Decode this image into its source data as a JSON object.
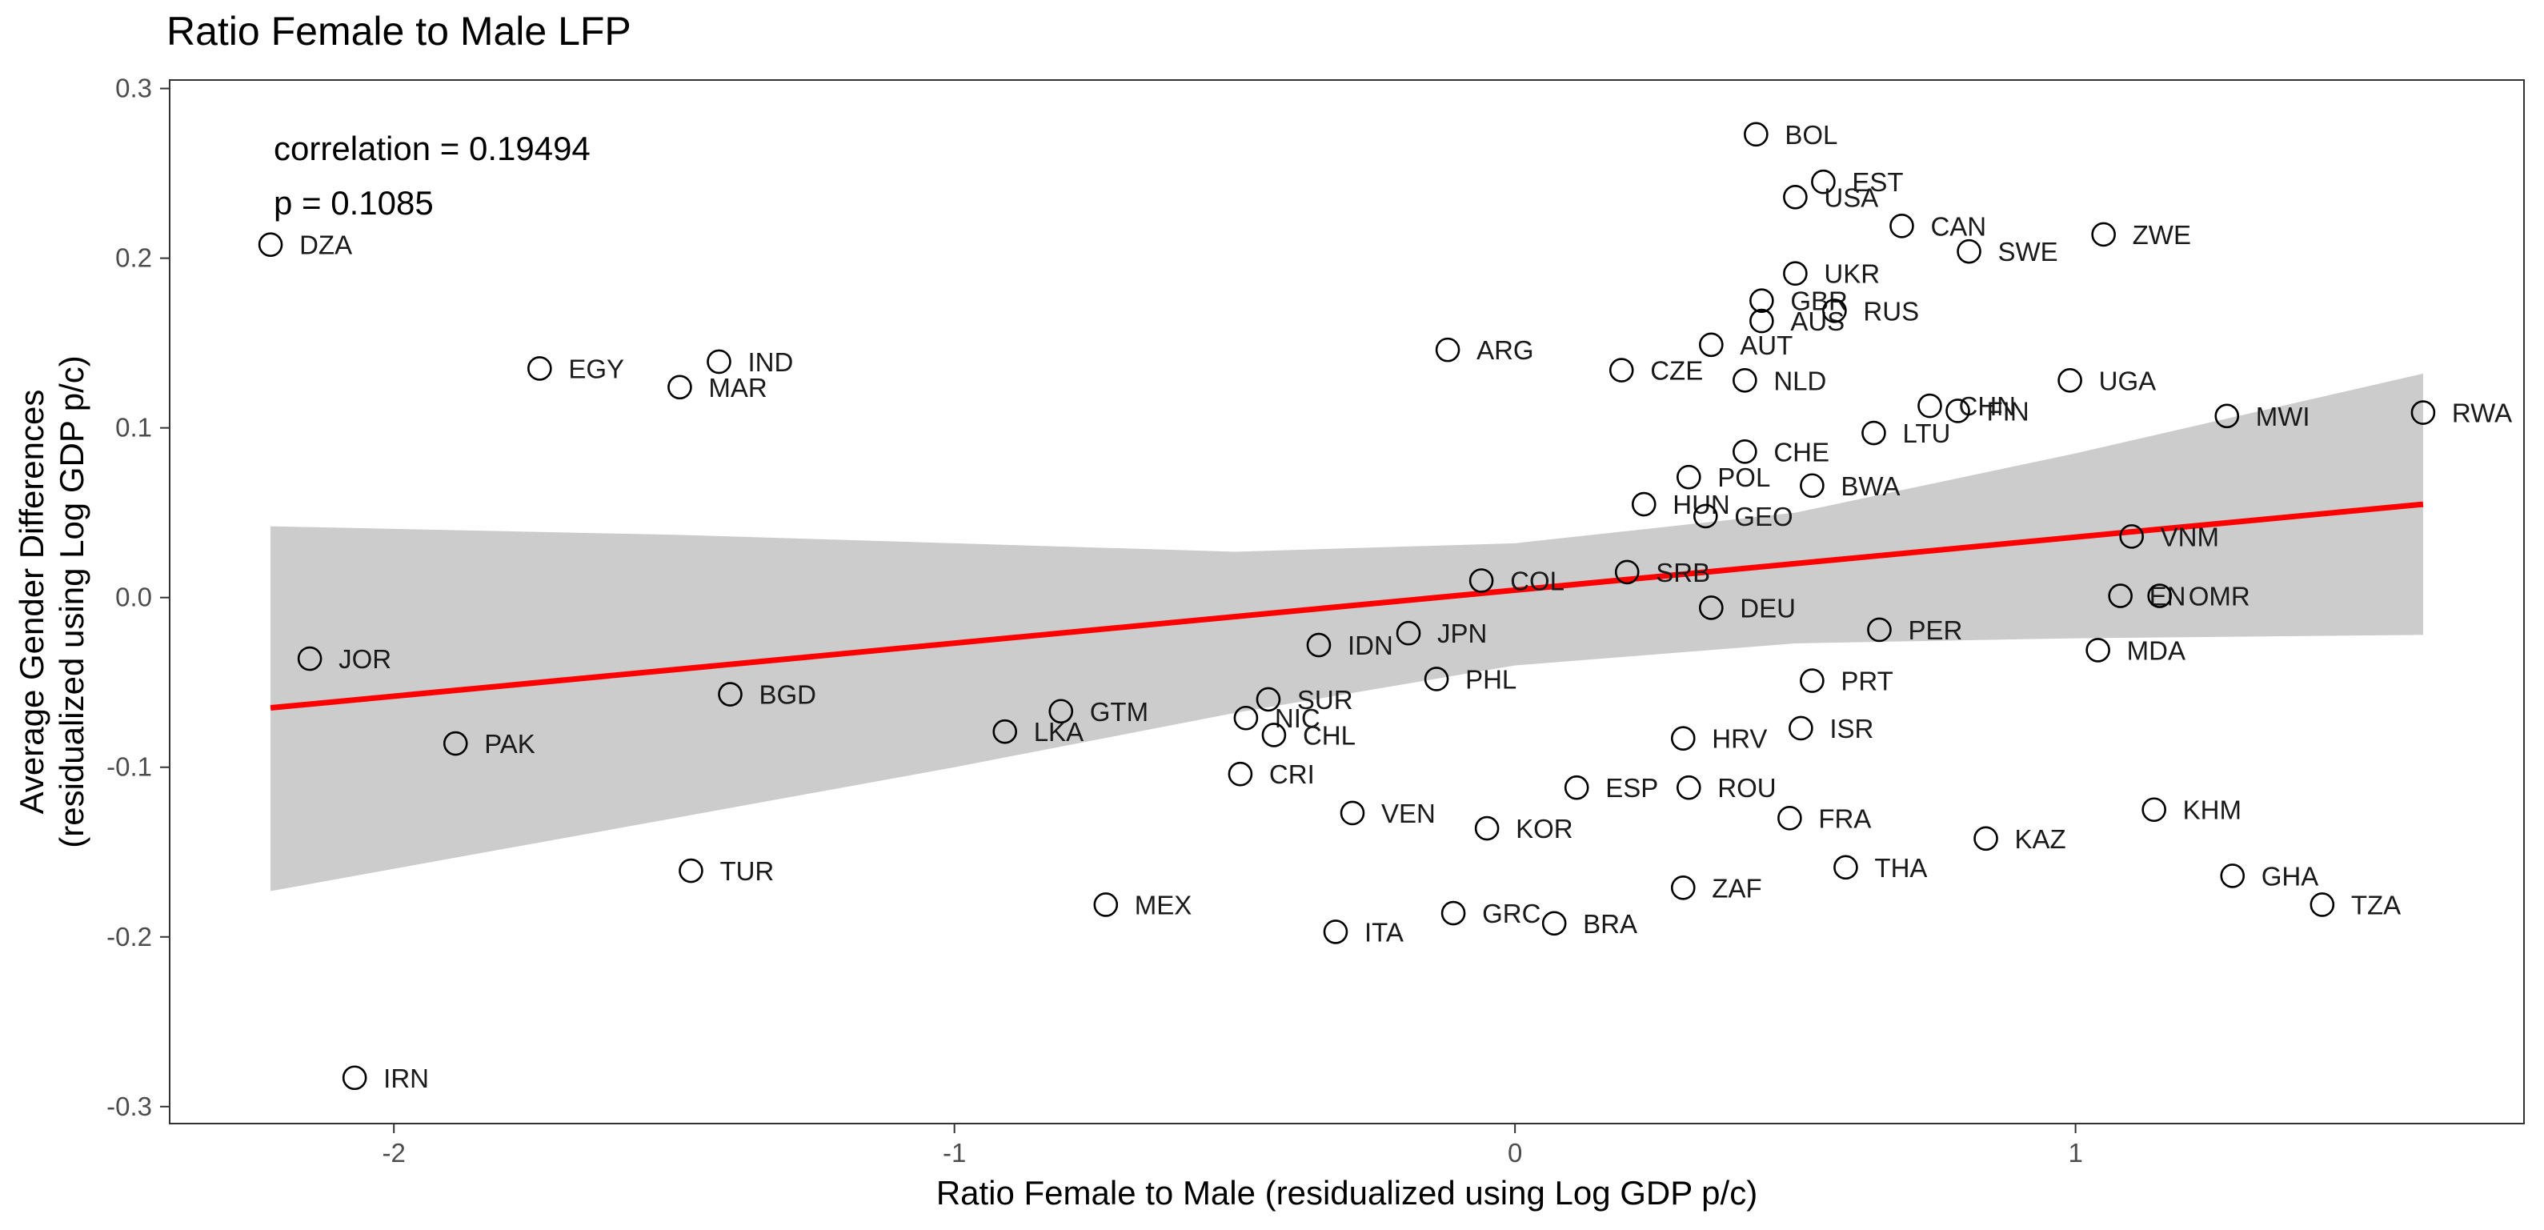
{
  "chart_data": {
    "type": "scatter",
    "title": "Ratio Female to Male LFP",
    "xlabel": "Ratio Female to Male (residualized using Log GDP p/c)",
    "ylabel_lines": [
      "Average Gender Differences",
      "(residualized using Log GDP p/c)"
    ],
    "xlim": [
      -2.4,
      1.8
    ],
    "ylim": [
      -0.31,
      0.305
    ],
    "x_ticks": [
      -2,
      -1,
      0,
      1
    ],
    "x_tick_labels": [
      "-2",
      "-1",
      "0",
      "1"
    ],
    "y_ticks": [
      0.3,
      0.2,
      0.1,
      0.0,
      -0.1,
      -0.2,
      -0.3
    ],
    "y_tick_labels": [
      "0.3",
      "0.2",
      "0.1",
      "0.0",
      "-0.1",
      "-0.2",
      "-0.3"
    ],
    "grid": false,
    "annotations": [
      "correlation = 0.19494",
      "p = 0.1085"
    ],
    "fit_line": {
      "x": [
        -2.22,
        1.62
      ],
      "y": [
        -0.065,
        0.055
      ],
      "color": "#ff0000"
    },
    "confidence_band": {
      "x": [
        -2.22,
        -1.5,
        -1.0,
        -0.5,
        0.0,
        0.5,
        1.0,
        1.62
      ],
      "lower": [
        -0.173,
        -0.13,
        -0.1,
        -0.068,
        -0.04,
        -0.027,
        -0.024,
        -0.022
      ],
      "upper": [
        0.042,
        0.037,
        0.032,
        0.027,
        0.032,
        0.05,
        0.085,
        0.132
      ],
      "color": "#cccccc"
    },
    "points": [
      {
        "label": "BOL",
        "x": 0.43,
        "y": 0.273
      },
      {
        "label": "EST",
        "x": 0.55,
        "y": 0.245
      },
      {
        "label": "USA",
        "x": 0.5,
        "y": 0.236
      },
      {
        "label": "CAN",
        "x": 0.69,
        "y": 0.219
      },
      {
        "label": "ZWE",
        "x": 1.05,
        "y": 0.214
      },
      {
        "label": "SWE",
        "x": 0.81,
        "y": 0.204
      },
      {
        "label": "DZA",
        "x": -2.22,
        "y": 0.208
      },
      {
        "label": "UKR",
        "x": 0.5,
        "y": 0.191
      },
      {
        "label": "GBR",
        "x": 0.44,
        "y": 0.175
      },
      {
        "label": "AUS",
        "x": 0.44,
        "y": 0.163
      },
      {
        "label": "RUS",
        "x": 0.57,
        "y": 0.169
      },
      {
        "label": "AUT",
        "x": 0.35,
        "y": 0.149
      },
      {
        "label": "ARG",
        "x": -0.12,
        "y": 0.146
      },
      {
        "label": "EGY",
        "x": -1.74,
        "y": 0.135
      },
      {
        "label": "IND",
        "x": -1.42,
        "y": 0.139
      },
      {
        "label": "MAR",
        "x": -1.49,
        "y": 0.124
      },
      {
        "label": "CZE",
        "x": 0.19,
        "y": 0.134
      },
      {
        "label": "NLD",
        "x": 0.41,
        "y": 0.128
      },
      {
        "label": "UGA",
        "x": 0.99,
        "y": 0.128
      },
      {
        "label": "CHN",
        "x": 0.74,
        "y": 0.113
      },
      {
        "label": "FIN",
        "x": 0.79,
        "y": 0.11
      },
      {
        "label": "MWI",
        "x": 1.27,
        "y": 0.107
      },
      {
        "label": "RWA",
        "x": 1.62,
        "y": 0.109
      },
      {
        "label": "LTU",
        "x": 0.64,
        "y": 0.097
      },
      {
        "label": "CHE",
        "x": 0.41,
        "y": 0.086
      },
      {
        "label": "POL",
        "x": 0.31,
        "y": 0.071
      },
      {
        "label": "BWA",
        "x": 0.53,
        "y": 0.066
      },
      {
        "label": "HUN",
        "x": 0.23,
        "y": 0.055
      },
      {
        "label": "GEO",
        "x": 0.34,
        "y": 0.048
      },
      {
        "label": "VNM",
        "x": 1.1,
        "y": 0.036
      },
      {
        "label": "SRB",
        "x": 0.2,
        "y": 0.015
      },
      {
        "label": "COL",
        "x": -0.06,
        "y": 0.01
      },
      {
        "label": "EN",
        "x": 1.08,
        "y": 0.001
      },
      {
        "label": "OMR",
        "x": 1.15,
        "y": 0.001
      },
      {
        "label": "DEU",
        "x": 0.35,
        "y": -0.006
      },
      {
        "label": "PER",
        "x": 0.65,
        "y": -0.019
      },
      {
        "label": "JPN",
        "x": -0.19,
        "y": -0.021
      },
      {
        "label": "IDN",
        "x": -0.35,
        "y": -0.028
      },
      {
        "label": "MDA",
        "x": 1.04,
        "y": -0.031
      },
      {
        "label": "JOR",
        "x": -2.15,
        "y": -0.036
      },
      {
        "label": "PHL",
        "x": -0.14,
        "y": -0.048
      },
      {
        "label": "PRT",
        "x": 0.53,
        "y": -0.049
      },
      {
        "label": "BGD",
        "x": -1.4,
        "y": -0.057
      },
      {
        "label": "SUR",
        "x": -0.44,
        "y": -0.06
      },
      {
        "label": "GTM",
        "x": -0.81,
        "y": -0.067
      },
      {
        "label": "NIC",
        "x": -0.48,
        "y": -0.071
      },
      {
        "label": "ISR",
        "x": 0.51,
        "y": -0.077
      },
      {
        "label": "LKA",
        "x": -0.91,
        "y": -0.079
      },
      {
        "label": "CHL",
        "x": -0.43,
        "y": -0.081
      },
      {
        "label": "HRV",
        "x": 0.3,
        "y": -0.083
      },
      {
        "label": "PAK",
        "x": -1.89,
        "y": -0.086
      },
      {
        "label": "CRI",
        "x": -0.49,
        "y": -0.104
      },
      {
        "label": "ESP",
        "x": 0.11,
        "y": -0.112
      },
      {
        "label": "ROU",
        "x": 0.31,
        "y": -0.112
      },
      {
        "label": "KHM",
        "x": 1.14,
        "y": -0.125
      },
      {
        "label": "VEN",
        "x": -0.29,
        "y": -0.127
      },
      {
        "label": "FRA",
        "x": 0.49,
        "y": -0.13
      },
      {
        "label": "KOR",
        "x": -0.05,
        "y": -0.136
      },
      {
        "label": "KAZ",
        "x": 0.84,
        "y": -0.142
      },
      {
        "label": "TUR",
        "x": -1.47,
        "y": -0.161
      },
      {
        "label": "THA",
        "x": 0.59,
        "y": -0.159
      },
      {
        "label": "GHA",
        "x": 1.28,
        "y": -0.164
      },
      {
        "label": "ZAF",
        "x": 0.3,
        "y": -0.171
      },
      {
        "label": "MEX",
        "x": -0.73,
        "y": -0.181
      },
      {
        "label": "TZA",
        "x": 1.44,
        "y": -0.181
      },
      {
        "label": "GRC",
        "x": -0.11,
        "y": -0.186
      },
      {
        "label": "BRA",
        "x": 0.07,
        "y": -0.192
      },
      {
        "label": "ITA",
        "x": -0.32,
        "y": -0.197
      },
      {
        "label": "IRN",
        "x": -2.07,
        "y": -0.283
      }
    ]
  }
}
